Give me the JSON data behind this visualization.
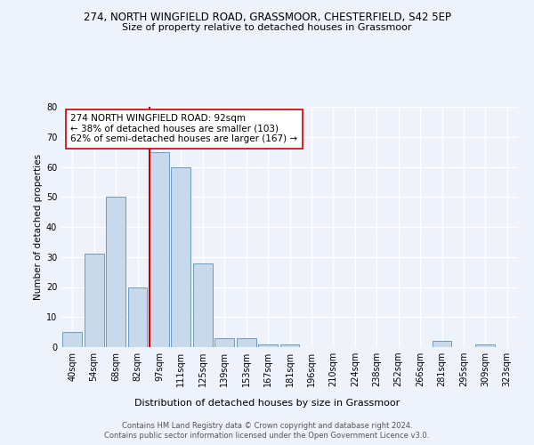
{
  "title1": "274, NORTH WINGFIELD ROAD, GRASSMOOR, CHESTERFIELD, S42 5EP",
  "title2": "Size of property relative to detached houses in Grassmoor",
  "xlabel": "Distribution of detached houses by size in Grassmoor",
  "ylabel": "Number of detached properties",
  "bin_labels": [
    "40sqm",
    "54sqm",
    "68sqm",
    "82sqm",
    "97sqm",
    "111sqm",
    "125sqm",
    "139sqm",
    "153sqm",
    "167sqm",
    "181sqm",
    "196sqm",
    "210sqm",
    "224sqm",
    "238sqm",
    "252sqm",
    "266sqm",
    "281sqm",
    "295sqm",
    "309sqm",
    "323sqm"
  ],
  "bar_heights": [
    5,
    31,
    50,
    20,
    65,
    60,
    28,
    3,
    3,
    1,
    1,
    0,
    0,
    0,
    0,
    0,
    0,
    2,
    0,
    1,
    0
  ],
  "bar_color": "#c9d9ec",
  "bar_edge_color": "#6a9cc0",
  "reference_line_color": "#cc0000",
  "reference_line_bin": 4,
  "annotation_text": "274 NORTH WINGFIELD ROAD: 92sqm\n← 38% of detached houses are smaller (103)\n62% of semi-detached houses are larger (167) →",
  "annotation_box_color": "#ffffff",
  "annotation_box_edge": "#cc0000",
  "ylim": [
    0,
    80
  ],
  "yticks": [
    0,
    10,
    20,
    30,
    40,
    50,
    60,
    70,
    80
  ],
  "footnote1": "Contains HM Land Registry data © Crown copyright and database right 2024.",
  "footnote2": "Contains public sector information licensed under the Open Government Licence v3.0.",
  "bg_color": "#eef2fa",
  "plot_bg_color": "#eef2fa",
  "title1_fontsize": 8.5,
  "title2_fontsize": 8.0,
  "xlabel_fontsize": 8.0,
  "ylabel_fontsize": 7.5,
  "tick_fontsize": 7.0,
  "annot_fontsize": 7.5,
  "footnote_fontsize": 6.0
}
